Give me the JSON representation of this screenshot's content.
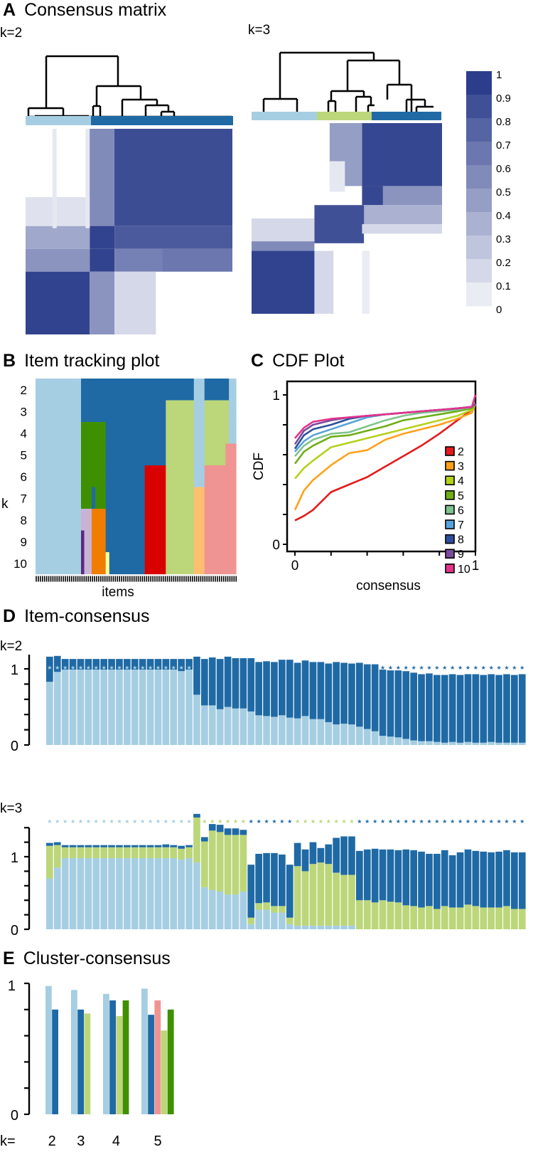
{
  "colors": {
    "c1": "#a6cee3",
    "c2": "#1f6aa5",
    "c3": "#bcd67a",
    "c4": "#3f9000",
    "c5": "#f09393",
    "c6": "#d90000",
    "c7": "#fdbf6f",
    "c8": "#f07c00",
    "c9": "#cab2d6",
    "c10": "#5a2a7f",
    "c11": "#ffff99",
    "heat_max": "#2b3d8b"
  },
  "panelA": {
    "letter": "A",
    "title": "Consensus matrix",
    "k2_label": "k=2",
    "k3_label": "k=3",
    "legend_ticks": [
      "1",
      "0.9",
      "0.8",
      "0.7",
      "0.6",
      "0.5",
      "0.4",
      "0.3",
      "0.2",
      "0.1",
      "0"
    ]
  },
  "panelB": {
    "letter": "B",
    "title": "Item tracking plot",
    "ylabel": "k",
    "xlabel": "items",
    "k_labels": [
      "2",
      "3",
      "4",
      "5",
      "6",
      "7",
      "8",
      "9",
      "10"
    ]
  },
  "panelC": {
    "letter": "C",
    "title": "CDF Plot"
  },
  "panelD": {
    "letter": "D",
    "title": "Item-consensus",
    "k2_label": "k=2",
    "k3_label": "k=3"
  },
  "panelE": {
    "letter": "E",
    "title": "Cluster-consensus",
    "k_prefix": "k="
  },
  "chart_data": [
    {
      "id": "consensus-matrix",
      "type": "heatmap",
      "title": "Consensus matrix",
      "panels": [
        "k=2",
        "k=3"
      ],
      "k2_clusters": {
        "sizes_fraction": [
          0.31,
          0.69
        ],
        "cluster_colors": [
          "#a6cee3",
          "#1f6aa5"
        ]
      },
      "k3_clusters": {
        "sizes_fraction": [
          0.33,
          0.28,
          0.39
        ],
        "cluster_colors": [
          "#a6cee3",
          "#bcd67a",
          "#1f6aa5"
        ]
      },
      "colorbar": {
        "range": [
          0,
          1
        ],
        "ticks": [
          0,
          0.1,
          0.2,
          0.3,
          0.4,
          0.5,
          0.6,
          0.7,
          0.8,
          0.9,
          1
        ]
      }
    },
    {
      "id": "item-tracking",
      "type": "heatmap",
      "title": "Item tracking plot",
      "xlabel": "items",
      "ylabel": "k",
      "k_values": [
        2,
        3,
        4,
        5,
        6,
        7,
        8,
        9,
        10
      ],
      "segments": [
        {
          "from": 0.0,
          "to": 0.227,
          "colors": [
            "c1",
            "c1",
            "c1",
            "c1",
            "c1",
            "c1",
            "c1",
            "c1",
            "c1"
          ]
        },
        {
          "from": 0.227,
          "to": 0.243,
          "colors": [
            "c2",
            "c2",
            "c4",
            "c4",
            "c4",
            "c4",
            "c9",
            "c10",
            "c10"
          ]
        },
        {
          "from": 0.243,
          "to": 0.28,
          "colors": [
            "c2",
            "c2",
            "c4",
            "c4",
            "c4",
            "c4",
            "c9",
            "c9",
            "c9"
          ]
        },
        {
          "from": 0.28,
          "to": 0.298,
          "colors": [
            "c2",
            "c2",
            "c4",
            "c4",
            "c4",
            "c2",
            "c8",
            "c8",
            "c8"
          ]
        },
        {
          "from": 0.298,
          "to": 0.35,
          "colors": [
            "c2",
            "c2",
            "c4",
            "c4",
            "c4",
            "c4",
            "c8",
            "c8",
            "c8"
          ]
        },
        {
          "from": 0.35,
          "to": 0.368,
          "colors": [
            "c2",
            "c2",
            "c2",
            "c2",
            "c2",
            "c2",
            "c2",
            "c2",
            "c11"
          ]
        },
        {
          "from": 0.368,
          "to": 0.545,
          "colors": [
            "c2",
            "c2",
            "c2",
            "c2",
            "c2",
            "c2",
            "c2",
            "c2",
            "c2"
          ]
        },
        {
          "from": 0.545,
          "to": 0.65,
          "colors": [
            "c2",
            "c2",
            "c2",
            "c2",
            "c6",
            "c6",
            "c6",
            "c6",
            "c6"
          ]
        },
        {
          "from": 0.65,
          "to": 0.79,
          "colors": [
            "c2",
            "c3",
            "c3",
            "c3",
            "c3",
            "c3",
            "c3",
            "c3",
            "c3"
          ]
        },
        {
          "from": 0.79,
          "to": 0.843,
          "colors": [
            "c1",
            "c1",
            "c1",
            "c1",
            "c1",
            "c7",
            "c7",
            "c7",
            "c7"
          ]
        },
        {
          "from": 0.843,
          "to": 0.948,
          "colors": [
            "c2",
            "c3",
            "c3",
            "c3",
            "c5",
            "c5",
            "c5",
            "c5",
            "c5"
          ]
        },
        {
          "from": 0.948,
          "to": 0.965,
          "colors": [
            "c2",
            "c3",
            "c3",
            "c5",
            "c5",
            "c5",
            "c5",
            "c5",
            "c5"
          ]
        },
        {
          "from": 0.965,
          "to": 1.0,
          "colors": [
            "c1",
            "c1",
            "c1",
            "c5",
            "c5",
            "c5",
            "c5",
            "c5",
            "c5"
          ]
        }
      ]
    },
    {
      "id": "cdf",
      "type": "line",
      "title": "CDF Plot",
      "xlabel": "consensus",
      "ylabel": "CDF",
      "xlim": [
        0,
        1
      ],
      "ylim": [
        0,
        1
      ],
      "xticks": [
        "0",
        "1"
      ],
      "yticks": [
        "0",
        "1"
      ],
      "legend_position": "right",
      "x": [
        0,
        0.05,
        0.1,
        0.2,
        0.3,
        0.4,
        0.5,
        0.6,
        0.7,
        0.8,
        0.9,
        0.98,
        1
      ],
      "series": [
        {
          "name": "2",
          "color": "#e41a1c",
          "values": [
            0.16,
            0.19,
            0.23,
            0.35,
            0.4,
            0.45,
            0.52,
            0.59,
            0.66,
            0.74,
            0.83,
            0.9,
            0.94
          ]
        },
        {
          "name": "3",
          "color": "#ffa11a",
          "values": [
            0.23,
            0.36,
            0.43,
            0.53,
            0.61,
            0.63,
            0.7,
            0.74,
            0.77,
            0.8,
            0.84,
            0.88,
            0.94
          ]
        },
        {
          "name": "4",
          "color": "#b5d11b",
          "values": [
            0.44,
            0.51,
            0.56,
            0.65,
            0.68,
            0.71,
            0.74,
            0.77,
            0.8,
            0.83,
            0.86,
            0.9,
            0.94
          ]
        },
        {
          "name": "5",
          "color": "#6fae18",
          "values": [
            0.54,
            0.62,
            0.66,
            0.72,
            0.73,
            0.76,
            0.79,
            0.83,
            0.85,
            0.87,
            0.89,
            0.91,
            0.94
          ]
        },
        {
          "name": "6",
          "color": "#7fc38e",
          "values": [
            0.59,
            0.66,
            0.7,
            0.74,
            0.75,
            0.79,
            0.83,
            0.86,
            0.88,
            0.89,
            0.9,
            0.92,
            0.94
          ]
        },
        {
          "name": "7",
          "color": "#57a3d9",
          "values": [
            0.62,
            0.69,
            0.73,
            0.77,
            0.81,
            0.85,
            0.87,
            0.88,
            0.89,
            0.9,
            0.91,
            0.92,
            0.94
          ]
        },
        {
          "name": "8",
          "color": "#2d4f9b",
          "values": [
            0.64,
            0.73,
            0.77,
            0.8,
            0.84,
            0.86,
            0.87,
            0.88,
            0.89,
            0.9,
            0.91,
            0.92,
            0.94
          ]
        },
        {
          "name": "9",
          "color": "#7a4a9c",
          "values": [
            0.67,
            0.76,
            0.8,
            0.83,
            0.85,
            0.86,
            0.87,
            0.88,
            0.89,
            0.9,
            0.91,
            0.92,
            0.94
          ]
        },
        {
          "name": "10",
          "color": "#e2348c",
          "values": [
            0.71,
            0.78,
            0.82,
            0.84,
            0.85,
            0.86,
            0.87,
            0.88,
            0.89,
            0.9,
            0.91,
            0.92,
            1.0
          ]
        }
      ]
    },
    {
      "id": "item-consensus-k2",
      "type": "bar",
      "stacked": true,
      "title": "Item-consensus k=2",
      "ylim": [
        0,
        1.4
      ],
      "yticks": [
        "0",
        "1"
      ],
      "series_colors": [
        "c1",
        "c2"
      ],
      "item_cluster": [
        1,
        1,
        1,
        1,
        1,
        1,
        1,
        1,
        1,
        1,
        1,
        1,
        1,
        1,
        1,
        1,
        1,
        1,
        1,
        2,
        2,
        2,
        2,
        2,
        2,
        2,
        2,
        2,
        2,
        2,
        2,
        2,
        2,
        2,
        2,
        2,
        2,
        2,
        2,
        2,
        2,
        2,
        2,
        2,
        2,
        2,
        2,
        2,
        2,
        2,
        2,
        2,
        2,
        2,
        2,
        2,
        2,
        2,
        2,
        2,
        2,
        2
      ],
      "series": [
        {
          "name": "c1",
          "values": [
            0.83,
            0.96,
            0.99,
            0.99,
            0.99,
            0.99,
            0.99,
            0.99,
            0.99,
            0.99,
            0.99,
            0.99,
            0.99,
            0.99,
            0.99,
            0.99,
            0.99,
            0.97,
            0.99,
            0.66,
            0.52,
            0.52,
            0.47,
            0.5,
            0.48,
            0.48,
            0.44,
            0.39,
            0.38,
            0.37,
            0.39,
            0.36,
            0.35,
            0.38,
            0.34,
            0.34,
            0.3,
            0.27,
            0.28,
            0.27,
            0.24,
            0.21,
            0.18,
            0.12,
            0.11,
            0.1,
            0.08,
            0.06,
            0.05,
            0.05,
            0.04,
            0.03,
            0.04,
            0.03,
            0.04,
            0.03,
            0.03,
            0.04,
            0.03,
            0.03,
            0.03,
            0.03
          ]
        },
        {
          "name": "c2",
          "values": [
            0.33,
            0.21,
            0.14,
            0.14,
            0.14,
            0.14,
            0.14,
            0.14,
            0.14,
            0.14,
            0.14,
            0.14,
            0.14,
            0.14,
            0.14,
            0.14,
            0.14,
            0.16,
            0.14,
            0.5,
            0.61,
            0.63,
            0.66,
            0.66,
            0.66,
            0.66,
            0.7,
            0.7,
            0.72,
            0.72,
            0.73,
            0.76,
            0.73,
            0.73,
            0.75,
            0.75,
            0.77,
            0.82,
            0.8,
            0.8,
            0.84,
            0.85,
            0.88,
            0.87,
            0.87,
            0.88,
            0.89,
            0.89,
            0.88,
            0.89,
            0.88,
            0.89,
            0.89,
            0.89,
            0.89,
            0.9,
            0.89,
            0.89,
            0.89,
            0.9,
            0.89,
            0.9
          ]
        }
      ]
    },
    {
      "id": "item-consensus-k3",
      "type": "bar",
      "stacked": true,
      "title": "Item-consensus k=3",
      "ylim": [
        0,
        1.4
      ],
      "yticks": [
        "0",
        "1"
      ],
      "series_colors": [
        "c1",
        "c3",
        "c2"
      ],
      "item_cluster": [
        1,
        1,
        1,
        1,
        1,
        1,
        1,
        1,
        1,
        1,
        1,
        1,
        1,
        1,
        1,
        1,
        1,
        1,
        1,
        3,
        3,
        3,
        3,
        3,
        3,
        3,
        2,
        2,
        2,
        2,
        2,
        2,
        3,
        3,
        3,
        3,
        3,
        3,
        3,
        3,
        2,
        2,
        2,
        2,
        2,
        2,
        2,
        2,
        2,
        2,
        2,
        2,
        2,
        2,
        2,
        2,
        2,
        2,
        2,
        2,
        2,
        2
      ],
      "series": [
        {
          "name": "c1",
          "values": [
            0.7,
            0.85,
            0.98,
            0.98,
            0.98,
            0.98,
            0.98,
            0.98,
            0.98,
            0.98,
            0.98,
            0.98,
            0.98,
            0.98,
            0.98,
            0.98,
            0.98,
            0.96,
            0.98,
            0.92,
            0.58,
            0.54,
            0.52,
            0.48,
            0.48,
            0.52,
            0.07,
            0.27,
            0.27,
            0.23,
            0.23,
            0.07,
            0.05,
            0.05,
            0.05,
            0.05,
            0.05,
            0.05,
            0.05,
            0.05,
            0,
            0,
            0,
            0,
            0,
            0,
            0,
            0,
            0,
            0,
            0,
            0,
            0,
            0,
            0,
            0,
            0,
            0,
            0,
            0,
            0,
            0
          ]
        },
        {
          "name": "c3",
          "values": [
            0.45,
            0.31,
            0.15,
            0.15,
            0.15,
            0.15,
            0.15,
            0.15,
            0.15,
            0.15,
            0.15,
            0.15,
            0.15,
            0.15,
            0.15,
            0.15,
            0.15,
            0.15,
            0.15,
            0.62,
            0.63,
            0.82,
            0.82,
            0.82,
            0.82,
            0.78,
            0.09,
            0.09,
            0.1,
            0.09,
            0.09,
            0.09,
            0.82,
            0.75,
            0.85,
            0.87,
            0.85,
            0.73,
            0.7,
            0.7,
            0.4,
            0.4,
            0.37,
            0.4,
            0.38,
            0.37,
            0.33,
            0.32,
            0.3,
            0.32,
            0.28,
            0.32,
            0.3,
            0.3,
            0.34,
            0.32,
            0.3,
            0.3,
            0.3,
            0.32,
            0.28,
            0.28
          ]
        },
        {
          "name": "c2",
          "values": [
            0.04,
            0.04,
            0.03,
            0.03,
            0.03,
            0.03,
            0.03,
            0.03,
            0.03,
            0.03,
            0.03,
            0.03,
            0.03,
            0.03,
            0.03,
            0.04,
            0.03,
            0.04,
            0.03,
            0.05,
            0.06,
            0.09,
            0.1,
            0.09,
            0.09,
            0.07,
            0.73,
            0.68,
            0.68,
            0.73,
            0.71,
            0.73,
            0.32,
            0.3,
            0.3,
            0.2,
            0.27,
            0.48,
            0.53,
            0.53,
            0.68,
            0.7,
            0.74,
            0.7,
            0.72,
            0.72,
            0.77,
            0.77,
            0.77,
            0.72,
            0.76,
            0.77,
            0.72,
            0.76,
            0.76,
            0.76,
            0.77,
            0.76,
            0.77,
            0.77,
            0.78,
            0.78
          ]
        }
      ]
    },
    {
      "id": "cluster-consensus",
      "type": "bar",
      "title": "Cluster-consensus",
      "ylim": [
        0,
        1
      ],
      "yticks": [
        "0",
        "1"
      ],
      "categories": [
        "2",
        "3",
        "4",
        "5"
      ],
      "groups": [
        {
          "k": "2",
          "values": [
            0.98,
            0.8
          ],
          "colors": [
            "c1",
            "c2"
          ]
        },
        {
          "k": "3",
          "values": [
            0.95,
            0.8,
            0.77
          ],
          "colors": [
            "c1",
            "c2",
            "c3"
          ]
        },
        {
          "k": "4",
          "values": [
            0.92,
            0.87,
            0.75,
            0.87
          ],
          "colors": [
            "c1",
            "c2",
            "c3",
            "c4"
          ]
        },
        {
          "k": "5",
          "values": [
            0.96,
            0.76,
            0.87,
            0.64,
            0.8
          ],
          "colors": [
            "c1",
            "c2",
            "c5",
            "c3",
            "c4"
          ]
        }
      ]
    }
  ]
}
